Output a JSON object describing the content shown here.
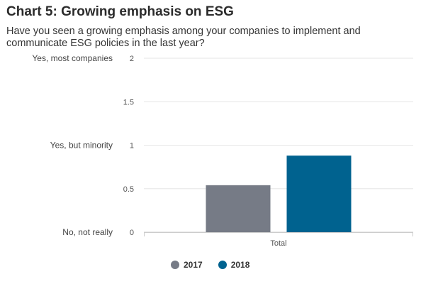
{
  "title": "Chart 5: Growing emphasis on ESG",
  "subtitle": "Have you seen a growing emphasis among your companies to implement and communicate ESG policies in the last year?",
  "chart_data": {
    "type": "bar",
    "categories": [
      "Total"
    ],
    "series": [
      {
        "name": "2017",
        "values": [
          0.54
        ],
        "color": "#767b86"
      },
      {
        "name": "2018",
        "values": [
          0.88
        ],
        "color": "#00628f"
      }
    ],
    "ylim": [
      0,
      2
    ],
    "yticks": [
      0,
      0.5,
      1,
      1.5,
      2
    ],
    "ytick_labels": [
      "0",
      "0.5",
      "1",
      "1.5",
      "2"
    ],
    "category_axis_labels": [
      {
        "value": 2,
        "label": "Yes, most companies"
      },
      {
        "value": 1,
        "label": "Yes, but minority"
      },
      {
        "value": 0,
        "label": "No, not really"
      }
    ],
    "grid": true,
    "legend_position": "bottom"
  }
}
